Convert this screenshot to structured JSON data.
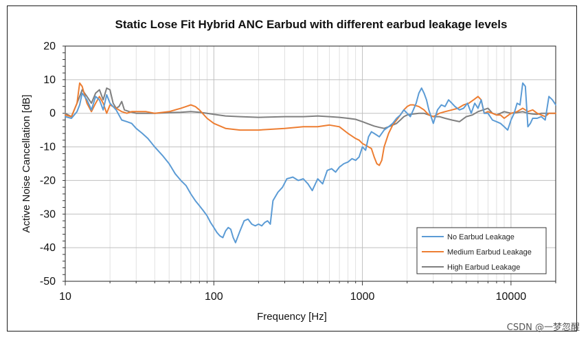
{
  "watermark": "CSDN @一梦忽醒",
  "chart_data": {
    "type": "line",
    "title": "Static Lose Fit Hybrid ANC Earbud with different earbud leakage levels",
    "xlabel": "Frequency  [Hz]",
    "ylabel": "Active Noise Cancellation [dB]",
    "xscale": "log",
    "xlim": [
      10,
      20000
    ],
    "ylim": [
      -50,
      20
    ],
    "yticks": [
      20,
      10,
      0,
      -10,
      -20,
      -30,
      -40,
      -50
    ],
    "ytick_labels": [
      "20",
      "10",
      "0",
      "-10",
      "-20",
      "-30",
      "-40",
      "-50"
    ],
    "xticks": [
      10,
      100,
      1000,
      10000
    ],
    "xtick_labels": [
      "10",
      "100",
      "1000",
      "10000"
    ],
    "grid": true,
    "legend_position": "bottom-right",
    "series": [
      {
        "name": "No Earbud Leakage",
        "color": "#5b9bd5",
        "x": [
          10,
          11,
          12,
          12.5,
          13,
          14,
          15,
          16,
          17,
          18,
          19,
          20,
          22,
          24,
          26,
          28,
          30,
          33,
          36,
          40,
          45,
          50,
          55,
          60,
          65,
          70,
          75,
          80,
          85,
          90,
          95,
          100,
          105,
          110,
          115,
          120,
          125,
          130,
          135,
          140,
          150,
          160,
          170,
          180,
          190,
          200,
          210,
          220,
          230,
          240,
          250,
          270,
          290,
          310,
          340,
          370,
          400,
          430,
          460,
          500,
          540,
          580,
          620,
          660,
          700,
          750,
          800,
          850,
          900,
          950,
          1000,
          1050,
          1100,
          1150,
          1200,
          1250,
          1300,
          1400,
          1500,
          1600,
          1700,
          1800,
          1900,
          2000,
          2100,
          2200,
          2300,
          2400,
          2500,
          2600,
          2700,
          2800,
          3000,
          3200,
          3400,
          3600,
          3800,
          4000,
          4200,
          4500,
          4800,
          5100,
          5400,
          5700,
          6000,
          6300,
          6600,
          7000,
          7500,
          8000,
          8500,
          9000,
          9500,
          10000,
          10500,
          11000,
          11500,
          12000,
          12500,
          13000,
          13500,
          14000,
          15000,
          16000,
          17000,
          18000,
          19000,
          20000
        ],
        "y": [
          -1,
          -1.5,
          0.5,
          2.5,
          6,
          4,
          1,
          5,
          4,
          1,
          5.5,
          3,
          1,
          -2,
          -2.5,
          -3,
          -4.5,
          -6,
          -7.5,
          -10,
          -12.5,
          -15,
          -18,
          -20,
          -21.5,
          -24,
          -26,
          -27.5,
          -29,
          -30.5,
          -32.5,
          -34,
          -35.5,
          -36.5,
          -37,
          -35,
          -34,
          -34.5,
          -37,
          -38.5,
          -35,
          -32,
          -31.5,
          -33,
          -33.5,
          -33,
          -33.5,
          -32.5,
          -32,
          -33,
          -26,
          -23.5,
          -22,
          -19.5,
          -19,
          -20,
          -19.5,
          -21,
          -23,
          -19.5,
          -21,
          -17,
          -16.5,
          -17.5,
          -16,
          -15,
          -14.5,
          -13.5,
          -14,
          -13,
          -10,
          -11,
          -7,
          -5.5,
          -6,
          -6.5,
          -7,
          -5,
          -4,
          -3,
          -1.5,
          -0.5,
          1,
          0,
          -1,
          1,
          3,
          6,
          7.5,
          6,
          4,
          1,
          -3,
          1,
          2.5,
          2,
          4,
          3,
          2,
          1,
          1.5,
          3,
          0,
          3,
          1.5,
          4,
          0,
          0,
          -2,
          -2.5,
          -3,
          -4,
          -5,
          -2,
          0,
          3,
          2.5,
          9,
          8,
          -4,
          -3,
          -1.5,
          -1.5,
          -1,
          -2,
          5,
          4,
          2.5
        ]
      },
      {
        "name": "Medium Earbud Leakage",
        "color": "#ed7d31",
        "x": [
          10,
          11,
          12,
          12.5,
          13,
          14,
          15,
          16,
          17,
          18,
          19,
          20,
          22,
          24,
          26,
          28,
          30,
          35,
          40,
          50,
          60,
          65,
          70,
          75,
          80,
          90,
          100,
          120,
          150,
          200,
          300,
          400,
          500,
          600,
          700,
          800,
          900,
          950,
          1000,
          1050,
          1100,
          1150,
          1200,
          1250,
          1300,
          1350,
          1400,
          1500,
          1600,
          1700,
          1800,
          1900,
          2000,
          2100,
          2200,
          2400,
          2600,
          2800,
          3000,
          3300,
          3600,
          4000,
          4400,
          4800,
          5200,
          5600,
          6000,
          6300,
          6600,
          7000,
          7500,
          8000,
          8500,
          9000,
          10000,
          11000,
          12000,
          13000,
          14000,
          15000,
          16000,
          17000,
          18000,
          19000,
          20000
        ],
        "y": [
          -0.5,
          -1,
          3,
          9,
          8,
          3,
          0.5,
          3,
          5,
          3,
          0,
          2.5,
          1.5,
          0.5,
          0,
          0.5,
          0.5,
          0.5,
          0,
          0.5,
          1.5,
          2,
          2.5,
          2,
          1,
          -1.5,
          -3,
          -4.5,
          -5,
          -5,
          -4.5,
          -4,
          -4,
          -3.5,
          -4,
          -6,
          -7.5,
          -8,
          -9,
          -9.5,
          -10,
          -10.5,
          -13,
          -15,
          -15.5,
          -14,
          -10,
          -6,
          -3.5,
          -2,
          -0.5,
          1,
          2,
          2.5,
          2.5,
          2,
          1,
          -0.5,
          -1,
          0,
          0.5,
          1,
          1.5,
          2.5,
          3,
          4,
          5,
          4,
          0,
          0.5,
          0,
          -0.5,
          -0.5,
          -1.5,
          0,
          0.5,
          1.5,
          0.5,
          1,
          0,
          -0.5,
          -1,
          0,
          0,
          0
        ]
      },
      {
        "name": "High Earbud Leakage",
        "color": "#7f7f7f",
        "x": [
          10,
          11,
          12,
          12.5,
          13,
          14,
          15,
          16,
          17,
          18,
          19,
          20,
          21,
          22,
          23,
          24,
          25,
          27,
          30,
          35,
          40,
          50,
          60,
          70,
          80,
          90,
          100,
          120,
          150,
          200,
          300,
          400,
          500,
          600,
          700,
          800,
          900,
          1000,
          1100,
          1200,
          1300,
          1400,
          1500,
          1600,
          1700,
          1800,
          1900,
          2000,
          2200,
          2400,
          2600,
          2800,
          3000,
          3300,
          3600,
          4000,
          4500,
          5000,
          5500,
          6000,
          6500,
          7000,
          7500,
          8000,
          8500,
          9000,
          10000,
          11000,
          12000,
          13000,
          14000,
          15000,
          16000,
          18000,
          20000
        ],
        "y": [
          0,
          -1,
          3,
          5,
          7,
          5,
          3,
          6,
          7,
          4,
          7.5,
          7,
          3,
          1.5,
          2,
          3.5,
          1,
          0.5,
          0,
          0,
          0,
          0.2,
          0.3,
          0.5,
          0.3,
          0,
          -0.3,
          -0.8,
          -1,
          -1.2,
          -1,
          -1,
          -0.8,
          -1,
          -1.2,
          -1.5,
          -1.8,
          -2.5,
          -3.2,
          -3.8,
          -4.2,
          -4.5,
          -4,
          -3.5,
          -3,
          -2,
          -1,
          -0.5,
          -0.2,
          0,
          0,
          -0.5,
          -1,
          -1,
          -1.5,
          -2,
          -2.5,
          -1,
          -0.5,
          0.5,
          1,
          1.5,
          0,
          -0.5,
          0,
          0.5,
          0,
          0.2,
          0.5,
          0,
          -0.2,
          -0.3,
          0,
          0,
          0
        ]
      }
    ]
  }
}
